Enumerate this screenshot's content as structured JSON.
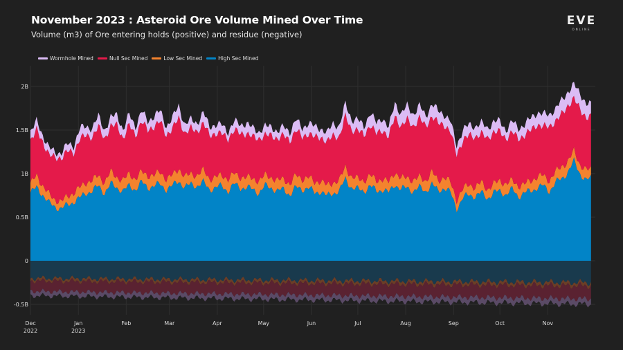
{
  "header": {
    "title": "November 2023 : Asteroid Ore Volume Mined Over Time",
    "subtitle": "Volume (m3) of Ore entering holds (positive) and residue (negative)",
    "logo_text": "EVE",
    "logo_subtext": "ONLINE"
  },
  "legend": [
    {
      "label": "Wormhole Mined",
      "color": "#dbbcf5"
    },
    {
      "label": "Null Sec Mined",
      "color": "#e41a4a"
    },
    {
      "label": "Low Sec Mined",
      "color": "#f4832e"
    },
    {
      "label": "High Sec Mined",
      "color": "#0284c7"
    }
  ],
  "chart_data": {
    "type": "area",
    "stacked": true,
    "title": "November 2023 : Asteroid Ore Volume Mined Over Time",
    "subtitle": "Volume (m3) of Ore entering holds (positive) and residue (negative)",
    "xlabel": "",
    "ylabel": "",
    "ylim": [
      -0.68,
      2.35
    ],
    "y_unit": "billion m3",
    "yticks": [
      {
        "value": 2,
        "label": "2B"
      },
      {
        "value": 1.5,
        "label": "1.5B"
      },
      {
        "value": 1,
        "label": "1B"
      },
      {
        "value": 0.5,
        "label": "0.5B"
      },
      {
        "value": 0,
        "label": "0"
      },
      {
        "value": -0.5,
        "label": "-0.5B"
      }
    ],
    "xticks": [
      {
        "day": 0,
        "label": [
          "Dec",
          "2022"
        ]
      },
      {
        "day": 31,
        "label": [
          "Jan",
          "2023"
        ]
      },
      {
        "day": 62,
        "label": [
          "Feb"
        ]
      },
      {
        "day": 90,
        "label": [
          "Mar"
        ]
      },
      {
        "day": 121,
        "label": [
          "Apr"
        ]
      },
      {
        "day": 151,
        "label": [
          "May"
        ]
      },
      {
        "day": 182,
        "label": [
          "Jun"
        ]
      },
      {
        "day": 212,
        "label": [
          "Jul"
        ]
      },
      {
        "day": 243,
        "label": [
          "Aug"
        ]
      },
      {
        "day": 274,
        "label": [
          "Sep"
        ]
      },
      {
        "day": 304,
        "label": [
          "Oct"
        ]
      },
      {
        "day": 335,
        "label": [
          "Nov"
        ]
      }
    ],
    "x_domain_days": [
      0,
      364
    ],
    "grid": true,
    "legend_position": "top-left",
    "x_days": [
      0,
      4,
      8,
      12,
      16,
      20,
      24,
      28,
      32,
      36,
      40,
      44,
      48,
      52,
      56,
      60,
      64,
      68,
      72,
      76,
      80,
      84,
      88,
      92,
      96,
      100,
      104,
      108,
      112,
      116,
      120,
      124,
      128,
      132,
      136,
      140,
      144,
      148,
      152,
      156,
      160,
      164,
      168,
      172,
      176,
      180,
      184,
      188,
      192,
      196,
      200,
      204,
      208,
      212,
      216,
      220,
      224,
      228,
      232,
      236,
      240,
      244,
      248,
      252,
      256,
      260,
      264,
      268,
      272,
      276,
      280,
      284,
      288,
      292,
      296,
      300,
      304,
      308,
      312,
      316,
      320,
      324,
      328,
      332,
      336,
      340,
      344,
      348,
      352,
      356,
      360,
      363
    ],
    "series": [
      {
        "name": "High Sec Mined",
        "color": "#0284c7",
        "values": [
          0.78,
          0.84,
          0.76,
          0.66,
          0.62,
          0.6,
          0.64,
          0.68,
          0.72,
          0.78,
          0.8,
          0.86,
          0.78,
          0.88,
          0.84,
          0.8,
          0.86,
          0.82,
          0.9,
          0.84,
          0.86,
          0.88,
          0.82,
          0.86,
          0.92,
          0.84,
          0.88,
          0.86,
          0.9,
          0.82,
          0.84,
          0.86,
          0.8,
          0.88,
          0.84,
          0.84,
          0.82,
          0.78,
          0.86,
          0.84,
          0.8,
          0.82,
          0.76,
          0.84,
          0.82,
          0.84,
          0.78,
          0.8,
          0.74,
          0.78,
          0.8,
          0.94,
          0.84,
          0.82,
          0.8,
          0.86,
          0.8,
          0.82,
          0.78,
          0.88,
          0.82,
          0.84,
          0.8,
          0.84,
          0.8,
          0.88,
          0.8,
          0.84,
          0.78,
          0.6,
          0.72,
          0.76,
          0.74,
          0.78,
          0.72,
          0.78,
          0.8,
          0.76,
          0.82,
          0.74,
          0.78,
          0.8,
          0.84,
          0.86,
          0.8,
          0.9,
          0.94,
          1.02,
          1.14,
          1.0,
          0.92,
          0.95
        ],
        "negative": -0.2
      },
      {
        "name": "Low Sec Mined",
        "color": "#f4832e",
        "values": [
          0.1,
          0.14,
          0.1,
          0.1,
          0.08,
          0.08,
          0.1,
          0.1,
          0.12,
          0.12,
          0.12,
          0.12,
          0.12,
          0.14,
          0.12,
          0.12,
          0.14,
          0.12,
          0.12,
          0.14,
          0.12,
          0.14,
          0.12,
          0.12,
          0.14,
          0.12,
          0.12,
          0.12,
          0.14,
          0.12,
          0.12,
          0.12,
          0.14,
          0.12,
          0.12,
          0.12,
          0.12,
          0.14,
          0.12,
          0.12,
          0.12,
          0.12,
          0.12,
          0.14,
          0.12,
          0.12,
          0.12,
          0.12,
          0.12,
          0.12,
          0.12,
          0.14,
          0.12,
          0.12,
          0.12,
          0.12,
          0.12,
          0.12,
          0.12,
          0.14,
          0.12,
          0.12,
          0.12,
          0.12,
          0.12,
          0.14,
          0.12,
          0.12,
          0.12,
          0.1,
          0.1,
          0.12,
          0.1,
          0.12,
          0.1,
          0.1,
          0.12,
          0.12,
          0.1,
          0.12,
          0.1,
          0.12,
          0.12,
          0.12,
          0.12,
          0.12,
          0.14,
          0.12,
          0.12,
          0.1,
          0.12,
          0.1
        ],
        "negative": -0.03
      },
      {
        "name": "Null Sec Mined",
        "color": "#e41a4a",
        "values": [
          0.5,
          0.52,
          0.5,
          0.46,
          0.48,
          0.5,
          0.52,
          0.46,
          0.56,
          0.54,
          0.5,
          0.56,
          0.5,
          0.52,
          0.6,
          0.48,
          0.56,
          0.5,
          0.58,
          0.52,
          0.56,
          0.58,
          0.5,
          0.54,
          0.58,
          0.5,
          0.52,
          0.5,
          0.54,
          0.5,
          0.5,
          0.48,
          0.46,
          0.5,
          0.5,
          0.5,
          0.48,
          0.48,
          0.46,
          0.48,
          0.48,
          0.5,
          0.5,
          0.52,
          0.48,
          0.5,
          0.52,
          0.5,
          0.5,
          0.54,
          0.5,
          0.58,
          0.54,
          0.56,
          0.52,
          0.58,
          0.54,
          0.56,
          0.52,
          0.64,
          0.6,
          0.66,
          0.62,
          0.68,
          0.62,
          0.64,
          0.66,
          0.6,
          0.58,
          0.52,
          0.56,
          0.56,
          0.58,
          0.56,
          0.58,
          0.6,
          0.56,
          0.52,
          0.56,
          0.54,
          0.56,
          0.58,
          0.6,
          0.56,
          0.62,
          0.58,
          0.6,
          0.64,
          0.6,
          0.64,
          0.6,
          0.6
        ],
        "negative": -0.12
      },
      {
        "name": "Wormhole Mined",
        "color": "#dbbcf5",
        "values": [
          0.1,
          0.1,
          0.08,
          0.08,
          0.06,
          0.06,
          0.08,
          0.08,
          0.12,
          0.1,
          0.1,
          0.12,
          0.1,
          0.1,
          0.12,
          0.1,
          0.12,
          0.1,
          0.12,
          0.1,
          0.12,
          0.12,
          0.1,
          0.12,
          0.14,
          0.1,
          0.1,
          0.1,
          0.12,
          0.1,
          0.1,
          0.1,
          0.08,
          0.1,
          0.1,
          0.12,
          0.1,
          0.08,
          0.1,
          0.1,
          0.08,
          0.1,
          0.1,
          0.12,
          0.1,
          0.12,
          0.12,
          0.1,
          0.1,
          0.14,
          0.12,
          0.14,
          0.12,
          0.12,
          0.1,
          0.14,
          0.12,
          0.14,
          0.1,
          0.16,
          0.14,
          0.16,
          0.14,
          0.14,
          0.12,
          0.14,
          0.14,
          0.12,
          0.12,
          0.1,
          0.12,
          0.12,
          0.12,
          0.12,
          0.12,
          0.12,
          0.12,
          0.1,
          0.12,
          0.12,
          0.12,
          0.14,
          0.14,
          0.14,
          0.14,
          0.14,
          0.16,
          0.16,
          0.16,
          0.18,
          0.16,
          0.14
        ],
        "negative": -0.05
      }
    ],
    "negative_region": {
      "description": "Residue volumes stacked below zero for each security class",
      "approx_total_range": [
        -0.52,
        -0.35
      ]
    }
  }
}
